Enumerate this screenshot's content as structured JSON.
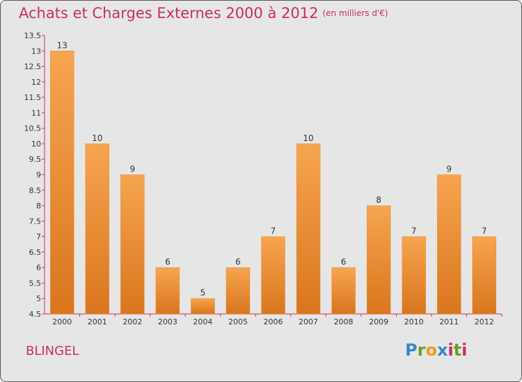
{
  "title": "Achats et Charges Externes 2000 à 2012",
  "subtitle": "(en milliers d'€)",
  "commune": "BLINGEL",
  "logo": "Proxiti",
  "colors": {
    "bar_light": "#f6a54f",
    "bar_dark": "#d9761e",
    "title": "#c8305a",
    "axis": "#c8305a",
    "background": "#e6e6e6"
  },
  "chart_data": {
    "type": "bar",
    "title": "Achats et Charges Externes 2000 à 2012",
    "subtitle": "(en milliers d'€)",
    "categories": [
      "2000",
      "2001",
      "2002",
      "2003",
      "2004",
      "2005",
      "2006",
      "2007",
      "2008",
      "2009",
      "2010",
      "2011",
      "2012"
    ],
    "values": [
      13,
      10,
      9,
      6,
      5,
      6,
      7,
      10,
      6,
      8,
      7,
      9,
      7
    ],
    "ylim": [
      4.5,
      13.5
    ],
    "yticks": [
      "4.5",
      "5",
      "5.5",
      "6",
      "6.5",
      "7",
      "7.5",
      "8",
      "8.5",
      "9",
      "9.5",
      "10",
      "10.5",
      "11",
      "11.5",
      "12",
      "12.5",
      "13",
      "13.5"
    ],
    "grid": false,
    "data_labels": true
  }
}
